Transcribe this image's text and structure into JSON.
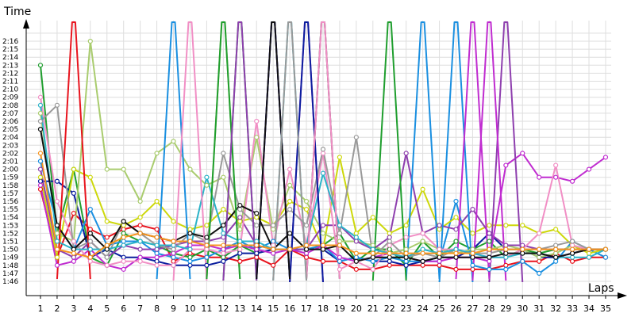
{
  "chart_data": {
    "type": "line",
    "title": "",
    "ylabel": "Time",
    "xlabel": "Laps",
    "x": [
      1,
      2,
      3,
      4,
      5,
      6,
      7,
      8,
      9,
      10,
      11,
      12,
      13,
      14,
      15,
      16,
      17,
      18,
      19,
      20,
      21,
      22,
      23,
      24,
      25,
      26,
      27,
      28,
      29,
      30,
      31,
      32,
      33,
      34,
      35
    ],
    "x_tick_labels": [
      "1",
      "2",
      "3",
      "4",
      "5",
      "6",
      "7",
      "8",
      "9",
      "10",
      "11",
      "12",
      "13",
      "14",
      "15",
      "16",
      "17",
      "18",
      "19",
      "20",
      "21",
      "22",
      "23",
      "24",
      "25",
      "26",
      "27",
      "28",
      "29",
      "30",
      "31",
      "32",
      "33",
      "34",
      "35"
    ],
    "y_tick_labels": [
      "1:46",
      "1:47",
      "1:48",
      "1:49",
      "1:50",
      "1:51",
      "1:52",
      "1:53",
      "1:54",
      "1:55",
      "1:56",
      "1:57",
      "1:58",
      "1:59",
      "2:00",
      "2:01",
      "2:02",
      "2:03",
      "2:04",
      "2:05",
      "2:06",
      "2:07",
      "2:08",
      "2:09",
      "2:10",
      "2:11",
      "2:12",
      "2:13",
      "2:14",
      "2:15",
      "2:16"
    ],
    "ylim": [
      105,
      137
    ],
    "y_unit": "seconds",
    "grid": true,
    "series": [
      {
        "color": "#e8141e",
        "values": [
          117.5,
          109,
          114.5,
          112.5,
          111.5,
          112.5,
          113,
          112.5,
          108.5,
          109.5,
          109,
          109,
          108.5,
          109,
          108,
          110,
          109,
          108.5,
          108.5,
          107.5,
          107.5,
          108,
          108,
          108,
          108,
          107.5,
          107.5,
          107.5,
          108,
          108.5,
          108.5,
          109.5,
          108.5,
          109,
          109
        ]
      },
      {
        "color": "#1f9e2e",
        "values": [
          133,
          112,
          120,
          109,
          108,
          112,
          111,
          110.5,
          109.5,
          109,
          110,
          109,
          110.5,
          109.5,
          110,
          110,
          110,
          110.5,
          112,
          108.5,
          110,
          110,
          108,
          111,
          109,
          111,
          110,
          111,
          109,
          110,
          109.5,
          110,
          110,
          110,
          110
        ]
      },
      {
        "color": "#0a1e9e",
        "values": [
          118.5,
          118.5,
          117,
          109,
          110,
          109,
          109,
          108.5,
          108,
          108,
          108,
          108.5,
          109.5,
          109.5,
          110,
          110,
          110,
          110,
          108.5,
          109,
          108.5,
          108.5,
          108,
          108.5,
          109,
          109,
          110,
          112,
          110,
          110,
          109,
          109,
          109.5,
          110,
          110
        ]
      },
      {
        "color": "#1a8fe0",
        "values": [
          121,
          113,
          110,
          115,
          110.5,
          111,
          111,
          109.5,
          109,
          108.5,
          109,
          110,
          111,
          110,
          111,
          110,
          110,
          110.5,
          108.5,
          109,
          108.5,
          109,
          108.5,
          108.5,
          108.5,
          116,
          108,
          107.5,
          107.5,
          108.5,
          107,
          108.5,
          111,
          110,
          109
        ]
      },
      {
        "color": "#cdd80a",
        "values": [
          119,
          109,
          120,
          119,
          113.5,
          113,
          114,
          116,
          113.5,
          112.5,
          113,
          115,
          113.5,
          114,
          113,
          116,
          115,
          110,
          121.5,
          112,
          114,
          112,
          113,
          117.5,
          112.5,
          114,
          112,
          113,
          113,
          113,
          112,
          112.5,
          110.5,
          109.5,
          110
        ]
      },
      {
        "color": "#a9cc6e",
        "values": [
          127,
          112,
          111,
          136,
          120,
          120,
          116,
          122,
          123.5,
          120,
          118,
          119,
          112.5,
          124,
          112.5,
          118,
          116,
          112,
          111,
          111,
          110.5,
          109.5,
          110,
          111,
          110,
          109.5,
          110,
          110,
          110.5,
          110,
          109,
          109.5,
          110.5,
          110,
          110
        ]
      },
      {
        "color": "#8e3fae",
        "values": [
          120,
          110,
          109,
          111,
          109,
          110.5,
          110,
          110,
          110.5,
          111,
          111,
          111.5,
          114,
          110.5,
          110,
          110,
          110,
          113,
          113,
          111,
          110,
          111.5,
          122,
          112,
          113,
          112.5,
          115,
          112,
          110.5,
          110.5,
          110,
          110,
          110,
          110,
          110
        ]
      },
      {
        "color": "#c02cd0",
        "values": [
          118,
          108,
          108.5,
          110,
          108,
          107.5,
          109,
          109,
          109.5,
          110.5,
          110.5,
          110,
          110.5,
          110,
          109.5,
          110,
          109.5,
          110.5,
          109,
          108.5,
          109,
          109.5,
          109,
          108.5,
          108.5,
          109,
          109,
          108.5,
          120.5,
          122,
          119,
          119,
          118.5,
          120,
          121.5
        ]
      },
      {
        "color": "#f18fc5",
        "values": [
          129,
          116,
          111,
          108.5,
          108,
          108.5,
          108.5,
          108,
          108,
          110,
          110,
          109.5,
          110,
          126,
          110.5,
          120,
          110.5,
          122,
          107.5,
          108.5,
          107.5,
          110.5,
          111.5,
          112,
          110,
          110,
          109.5,
          109,
          109,
          110,
          112,
          120.5,
          110.5,
          110,
          110
        ]
      },
      {
        "color": "#999999",
        "values": [
          126,
          128,
          110,
          111,
          109,
          113.5,
          112,
          110.5,
          110,
          112,
          111,
          122,
          115,
          113,
          113,
          115,
          113,
          122.5,
          112,
          124,
          109,
          111,
          109,
          109.5,
          109,
          110,
          109.5,
          109.5,
          110,
          110,
          110,
          110.5,
          111,
          110,
          110
        ]
      },
      {
        "color": "#2ab3c8",
        "values": [
          128,
          111,
          110,
          110,
          110,
          110.5,
          111,
          110.5,
          110.5,
          110,
          119,
          112,
          111,
          111,
          110,
          110,
          110.5,
          119.5,
          113,
          111.5,
          110,
          109.5,
          109,
          110,
          109.5,
          110,
          109.5,
          109,
          109,
          109.5,
          109.5,
          109,
          109,
          109,
          110
        ]
      },
      {
        "color": "#111111",
        "values": [
          125,
          113,
          110,
          112,
          110,
          113.5,
          112,
          111.5,
          111,
          112,
          111.5,
          113,
          115.5,
          114.5,
          110,
          112,
          110,
          110,
          110.5,
          108.5,
          109,
          109,
          109,
          108.5,
          109,
          109,
          109,
          109,
          109.5,
          109.5,
          109.5,
          109,
          109.5,
          110,
          110
        ]
      },
      {
        "color": "#f7941d",
        "values": [
          122,
          110,
          109.5,
          109,
          110.5,
          111.5,
          112,
          111.5,
          111,
          111,
          110.5,
          110.5,
          110.5,
          110.5,
          110,
          110,
          110.5,
          110.5,
          110.5,
          109.5,
          109.5,
          109.5,
          109.5,
          109.5,
          109.5,
          109.5,
          109.5,
          110,
          110,
          110,
          110,
          110,
          110,
          110,
          110
        ]
      }
    ],
    "spikes": [
      {
        "color": "#1a8fe0",
        "x": 9
      },
      {
        "color": "#1a8fe0",
        "x": 24
      },
      {
        "color": "#1a8fe0",
        "x": 26
      },
      {
        "color": "#f18fc5",
        "x": 10
      },
      {
        "color": "#a9cc6e",
        "x": 12
      },
      {
        "color": "#1f9e2e",
        "x": 12
      },
      {
        "color": "#1f9e2e",
        "x": 13
      },
      {
        "color": "#1f9e2e",
        "x": 22
      },
      {
        "color": "#8e3fae",
        "x": 13
      },
      {
        "color": "#8e3fae",
        "x": 15
      },
      {
        "color": "#8e3fae",
        "x": 29
      },
      {
        "color": "#c02cd0",
        "x": 17
      },
      {
        "color": "#c02cd0",
        "x": 27
      },
      {
        "color": "#c02cd0",
        "x": 28
      },
      {
        "color": "#0a1e9e",
        "x": 15
      },
      {
        "color": "#0a1e9e",
        "x": 17
      },
      {
        "color": "#111111",
        "x": 15
      },
      {
        "color": "#111111",
        "x": 18
      },
      {
        "color": "#2ab3c8",
        "x": 16
      },
      {
        "color": "#f18fc5",
        "x": 18
      },
      {
        "color": "#e8141e",
        "x": 3
      },
      {
        "color": "#999999",
        "x": 16
      }
    ]
  }
}
